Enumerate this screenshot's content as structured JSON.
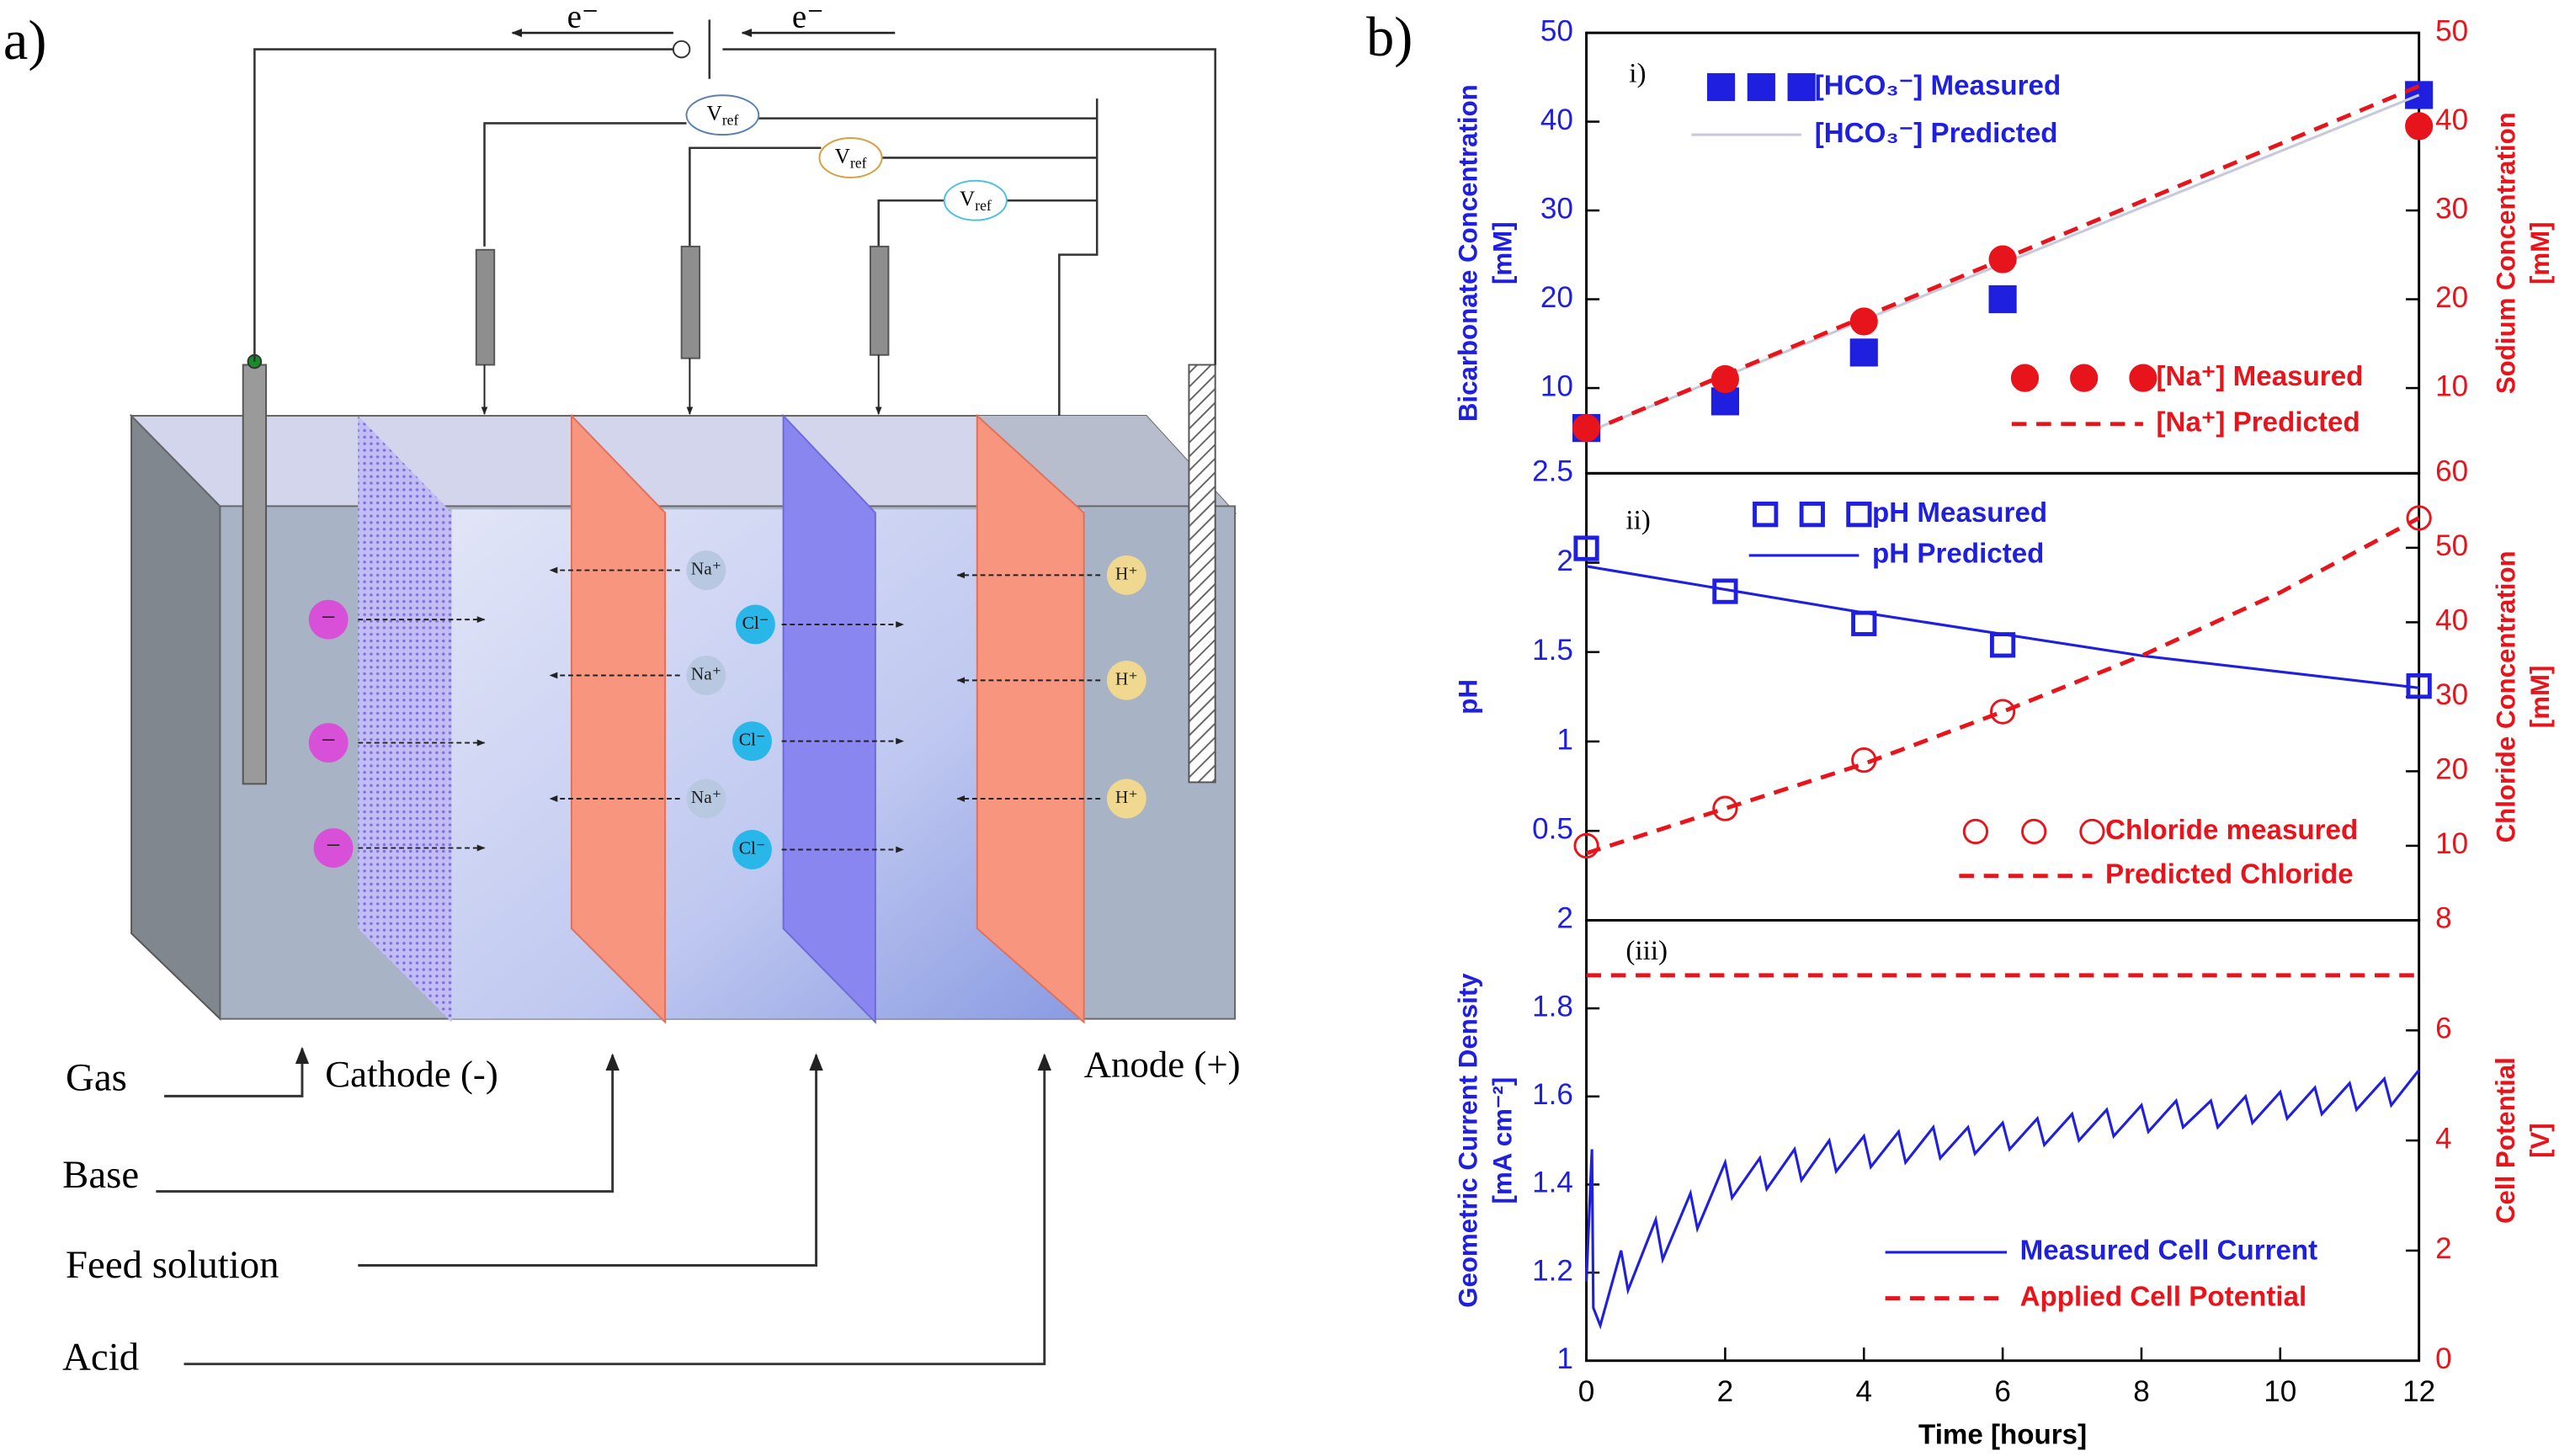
{
  "diagram": {
    "panel_label": "a)",
    "electrons": [
      "e⁻",
      "e⁻"
    ],
    "vref": [
      {
        "main": "V",
        "sub": "ref"
      },
      {
        "main": "V",
        "sub": "ref"
      },
      {
        "main": "V",
        "sub": "ref"
      }
    ],
    "ions": {
      "minus": [
        "−",
        "−",
        "−"
      ],
      "na": [
        "Na⁺",
        "Na⁺",
        "Na⁺"
      ],
      "cl": [
        "Cl⁻",
        "Cl⁻",
        "Cl⁻"
      ],
      "h": [
        "H⁺",
        "H⁺",
        "H⁺"
      ]
    },
    "cathode": "Cathode (-)",
    "anode": "Anode (+)",
    "streams": [
      "Gas",
      "Base",
      "Feed solution",
      "Acid"
    ]
  },
  "panel_b_label": "b)",
  "chart_data": [
    {
      "type": "line",
      "panel_label": "i)",
      "ycolor": "#1f1fe0",
      "y2color": "#e8141c",
      "ylabel": [
        "Bicarbonate Concentration",
        "[mM]"
      ],
      "y2label": [
        "Sodium Concentration",
        "[mM]"
      ],
      "xlim": [
        0,
        12
      ],
      "ylim": [
        0.4,
        50
      ],
      "yticks": [
        10,
        20,
        30,
        40,
        50
      ],
      "y2lim": [
        0.4,
        50
      ],
      "y2ticks": [
        10,
        20,
        30,
        40,
        50
      ],
      "series": [
        {
          "name": "[HCO₃⁻] Measured",
          "color": "#1f1fe0",
          "marker": "square",
          "filled": true,
          "line": "none",
          "x": [
            0,
            2,
            4,
            6,
            12
          ],
          "values": [
            5.5,
            8.5,
            14,
            20,
            43
          ]
        },
        {
          "name": "[HCO₃⁻] Predicted",
          "color": "#c8cadb",
          "marker": "none",
          "line": "solid",
          "x": [
            0,
            12
          ],
          "values": [
            5,
            43
          ]
        },
        {
          "name": "[Na⁺] Measured",
          "color": "#e8141c",
          "marker": "circle",
          "filled": true,
          "line": "none",
          "axis": "y2",
          "x": [
            0,
            2,
            4,
            6,
            12
          ],
          "values": [
            5.5,
            11,
            17.5,
            24.5,
            39.5
          ]
        },
        {
          "name": "[Na⁺] Predicted",
          "color": "#e8141c",
          "marker": "none",
          "line": "dashed",
          "axis": "y2",
          "x": [
            0,
            12
          ],
          "values": [
            5,
            44
          ]
        }
      ]
    },
    {
      "type": "line",
      "panel_label": "ii)",
      "ycolor": "#1f1fe0",
      "y2color": "#e8141c",
      "ylabel": [
        "pH"
      ],
      "y2label": [
        "Chloride Concentration",
        "[mM]"
      ],
      "xlim": [
        0,
        12
      ],
      "ylim": [
        0,
        2.5
      ],
      "yticks": [
        0.5,
        1,
        1.5,
        2,
        2.5
      ],
      "y2lim": [
        0,
        60
      ],
      "y2ticks": [
        10,
        20,
        30,
        40,
        50,
        60
      ],
      "series": [
        {
          "name": "pH Measured",
          "color": "#1f1fe0",
          "marker": "square",
          "filled": false,
          "line": "none",
          "x": [
            0,
            2,
            4,
            6,
            12
          ],
          "values": [
            2.08,
            1.84,
            1.66,
            1.54,
            1.31
          ]
        },
        {
          "name": "pH Predicted",
          "color": "#1f1fe0",
          "marker": "none",
          "line": "solid",
          "x": [
            0,
            2,
            4,
            6,
            8,
            10,
            12
          ],
          "values": [
            1.98,
            1.85,
            1.72,
            1.6,
            1.48,
            1.39,
            1.3
          ]
        },
        {
          "name": "Chloride measured",
          "color": "#e8141c",
          "marker": "circle",
          "filled": false,
          "line": "none",
          "axis": "y2",
          "x": [
            0,
            2,
            4,
            6,
            12
          ],
          "values": [
            10,
            15,
            21.5,
            28,
            54
          ]
        },
        {
          "name": "Predicted Chloride",
          "color": "#e8141c",
          "marker": "none",
          "line": "dashed",
          "axis": "y2",
          "x": [
            0,
            2,
            4,
            6,
            8,
            10,
            12
          ],
          "values": [
            9,
            15,
            21,
            28,
            35.5,
            44,
            54
          ]
        }
      ]
    },
    {
      "type": "line",
      "panel_label": "(iii)",
      "ycolor": "#1f1fe0",
      "y2color": "#e8141c",
      "ylabel": [
        "Geometric Current Density",
        "[mA cm⁻²]"
      ],
      "y2label": [
        "Cell Potential",
        "[V]"
      ],
      "xlabel": "Time [hours]",
      "xlim": [
        0,
        12
      ],
      "xticks": [
        0,
        2,
        4,
        6,
        8,
        10,
        12
      ],
      "ylim": [
        1,
        2
      ],
      "yticks": [
        1,
        1.2,
        1.4,
        1.6,
        1.8,
        2
      ],
      "y2lim": [
        0,
        8
      ],
      "y2ticks": [
        0,
        2,
        4,
        6,
        8
      ],
      "series": [
        {
          "name": "Measured Cell Current",
          "color": "#1f1fe0",
          "marker": "none",
          "line": "solid",
          "x": [
            0,
            0.08,
            0.1,
            0.2,
            0.5,
            0.6,
            1,
            1.1,
            1.5,
            1.6,
            2,
            2.1,
            2.5,
            2.6,
            3,
            3.1,
            3.5,
            3.6,
            4,
            4.1,
            4.5,
            4.6,
            5,
            5.1,
            5.5,
            5.6,
            6,
            6.1,
            6.5,
            6.6,
            7,
            7.1,
            7.5,
            7.6,
            8,
            8.1,
            8.5,
            8.6,
            9,
            9.1,
            9.5,
            9.6,
            10,
            10.1,
            10.5,
            10.6,
            11,
            11.1,
            11.5,
            11.6,
            12
          ],
          "values": [
            1.18,
            1.48,
            1.12,
            1.08,
            1.25,
            1.16,
            1.32,
            1.23,
            1.38,
            1.3,
            1.45,
            1.37,
            1.46,
            1.39,
            1.48,
            1.41,
            1.5,
            1.43,
            1.51,
            1.44,
            1.52,
            1.45,
            1.53,
            1.46,
            1.53,
            1.47,
            1.54,
            1.48,
            1.55,
            1.49,
            1.56,
            1.5,
            1.57,
            1.51,
            1.58,
            1.52,
            1.59,
            1.53,
            1.59,
            1.53,
            1.6,
            1.54,
            1.61,
            1.55,
            1.62,
            1.56,
            1.63,
            1.57,
            1.64,
            1.58,
            1.66
          ]
        },
        {
          "name": "Applied Cell Potential",
          "color": "#e8141c",
          "marker": "none",
          "line": "dashed",
          "axis": "y2",
          "x": [
            0,
            12
          ],
          "values": [
            7,
            7
          ]
        }
      ]
    }
  ]
}
